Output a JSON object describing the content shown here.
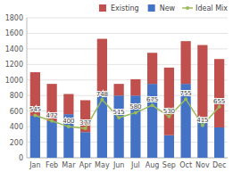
{
  "chart_data": {
    "type": "bar",
    "stacked": true,
    "categories": [
      "Jan",
      "Feb",
      "Mar",
      "Apr",
      "May",
      "Jun",
      "Jul",
      "Aug",
      "Sep",
      "Oct",
      "Nov",
      "Dec"
    ],
    "series": [
      {
        "name": "New",
        "color": "#4472C4",
        "values": [
          540,
          470,
          560,
          330,
          800,
          800,
          800,
          950,
          290,
          950,
          490,
          390
        ]
      },
      {
        "name": "Existing",
        "color": "#C0504D",
        "values": [
          560,
          480,
          260,
          410,
          730,
          150,
          210,
          400,
          870,
          550,
          960,
          880
        ]
      },
      {
        "name": "Ideal Mix",
        "type": "line",
        "color": "#9BBB59",
        "marker": "circle",
        "data_labels": true,
        "values": [
          545,
          472,
          400,
          377,
          748,
          515,
          580,
          675,
          530,
          755,
          415,
          655
        ]
      }
    ],
    "ylim": [
      0,
      1800
    ],
    "yticks": [
      0,
      200,
      400,
      600,
      800,
      1000,
      1200,
      1400,
      1600,
      1800
    ],
    "grid": true,
    "legend": "upper right"
  }
}
